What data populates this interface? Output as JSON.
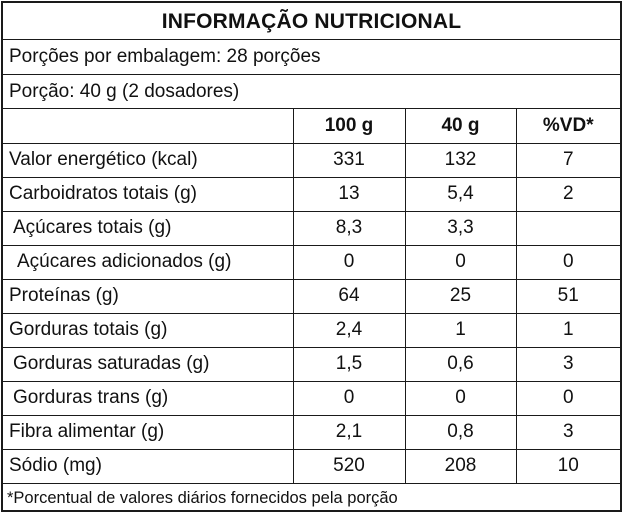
{
  "title": "INFORMAÇÃO NUTRICIONAL",
  "servings_per_package": "Porções por embalagem: 28 porções",
  "serving_size": "Porção: 40 g (2 dosadores)",
  "columns": [
    "",
    "100 g",
    "40 g",
    "%VD*"
  ],
  "rows": [
    {
      "label": "Valor energético (kcal)",
      "per100": "331",
      "per40": "132",
      "vd": "7"
    },
    {
      "label": "Carboidratos totais (g)",
      "per100": "13",
      "per40": "5,4",
      "vd": "2"
    },
    {
      "label": "Açúcares totais (g)",
      "per100": "8,3",
      "per40": "3,3",
      "vd": ""
    },
    {
      "label": "Açúcares adicionados (g)",
      "per100": "0",
      "per40": "0",
      "vd": "0"
    },
    {
      "label": "Proteínas (g)",
      "per100": "64",
      "per40": "25",
      "vd": "51"
    },
    {
      "label": "Gorduras totais (g)",
      "per100": "2,4",
      "per40": "1",
      "vd": "1"
    },
    {
      "label": "Gorduras saturadas (g)",
      "per100": "1,5",
      "per40": "0,6",
      "vd": "3"
    },
    {
      "label": "Gorduras trans (g)",
      "per100": "0",
      "per40": "0",
      "vd": "0"
    },
    {
      "label": "Fibra alimentar (g)",
      "per100": "2,1",
      "per40": "0,8",
      "vd": "3"
    },
    {
      "label": "Sódio (mg)",
      "per100": "520",
      "per40": "208",
      "vd": "10"
    }
  ],
  "footnote": "*Porcentual de valores diários fornecidos pela porção"
}
